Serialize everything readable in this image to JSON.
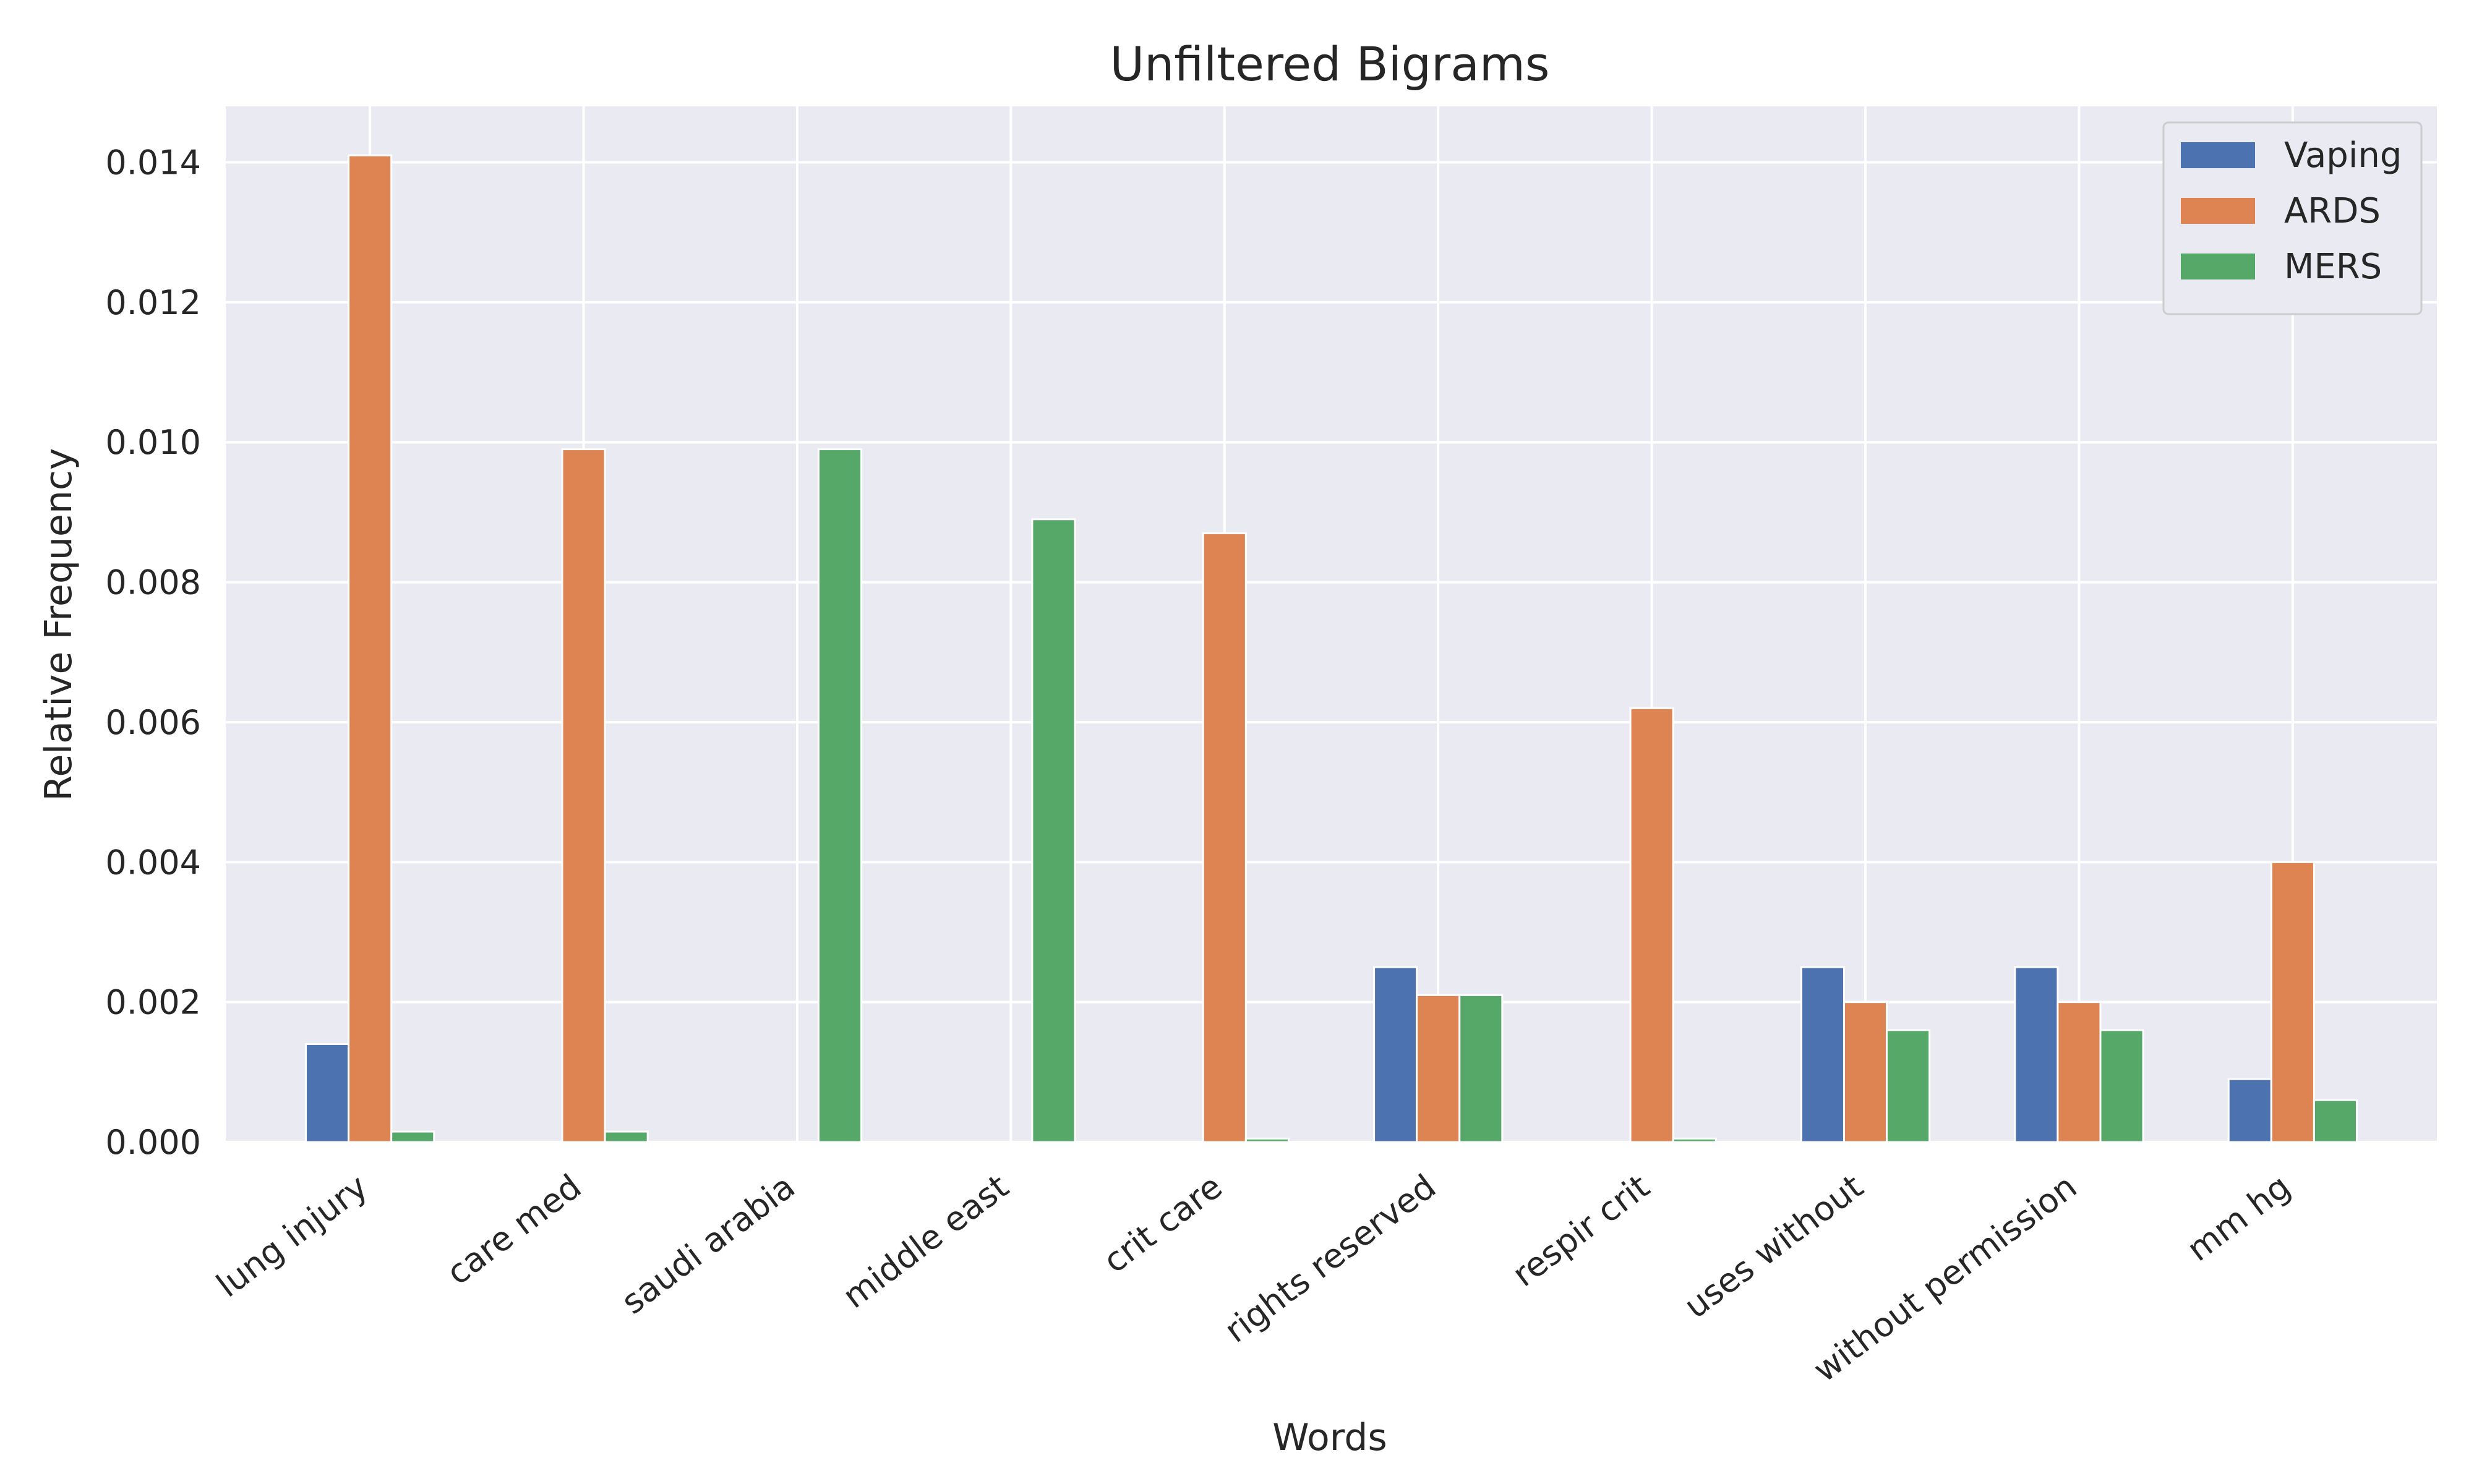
{
  "chart_data": {
    "type": "bar",
    "title": "Unfiltered Bigrams",
    "xlabel": "Words",
    "ylabel": "Relative Frequency",
    "categories": [
      "lung injury",
      "care med",
      "saudi arabia",
      "middle east",
      "crit care",
      "rights reserved",
      "respir crit",
      "uses without",
      "without permission",
      "mm hg"
    ],
    "series": [
      {
        "name": "Vaping",
        "color": "#4c72b0",
        "values": [
          0.0014,
          0.0,
          0.0,
          0.0,
          0.0,
          0.0025,
          0.0,
          0.0025,
          0.0025,
          0.0009
        ]
      },
      {
        "name": "ARDS",
        "color": "#dd8452",
        "values": [
          0.0141,
          0.0099,
          0.0,
          0.0,
          0.0087,
          0.0021,
          0.0062,
          0.002,
          0.002,
          0.004
        ]
      },
      {
        "name": "MERS",
        "color": "#55a868",
        "values": [
          0.00015,
          0.00015,
          0.0099,
          0.0089,
          5e-05,
          0.0021,
          5e-05,
          0.0016,
          0.0016,
          0.0006
        ]
      }
    ],
    "ylim": [
      0,
      0.0148
    ],
    "yticks": [
      "0.000",
      "0.002",
      "0.004",
      "0.006",
      "0.008",
      "0.010",
      "0.012",
      "0.014"
    ],
    "grid": true,
    "legend_position": "top-right",
    "background_color": "#eaeaf2"
  }
}
